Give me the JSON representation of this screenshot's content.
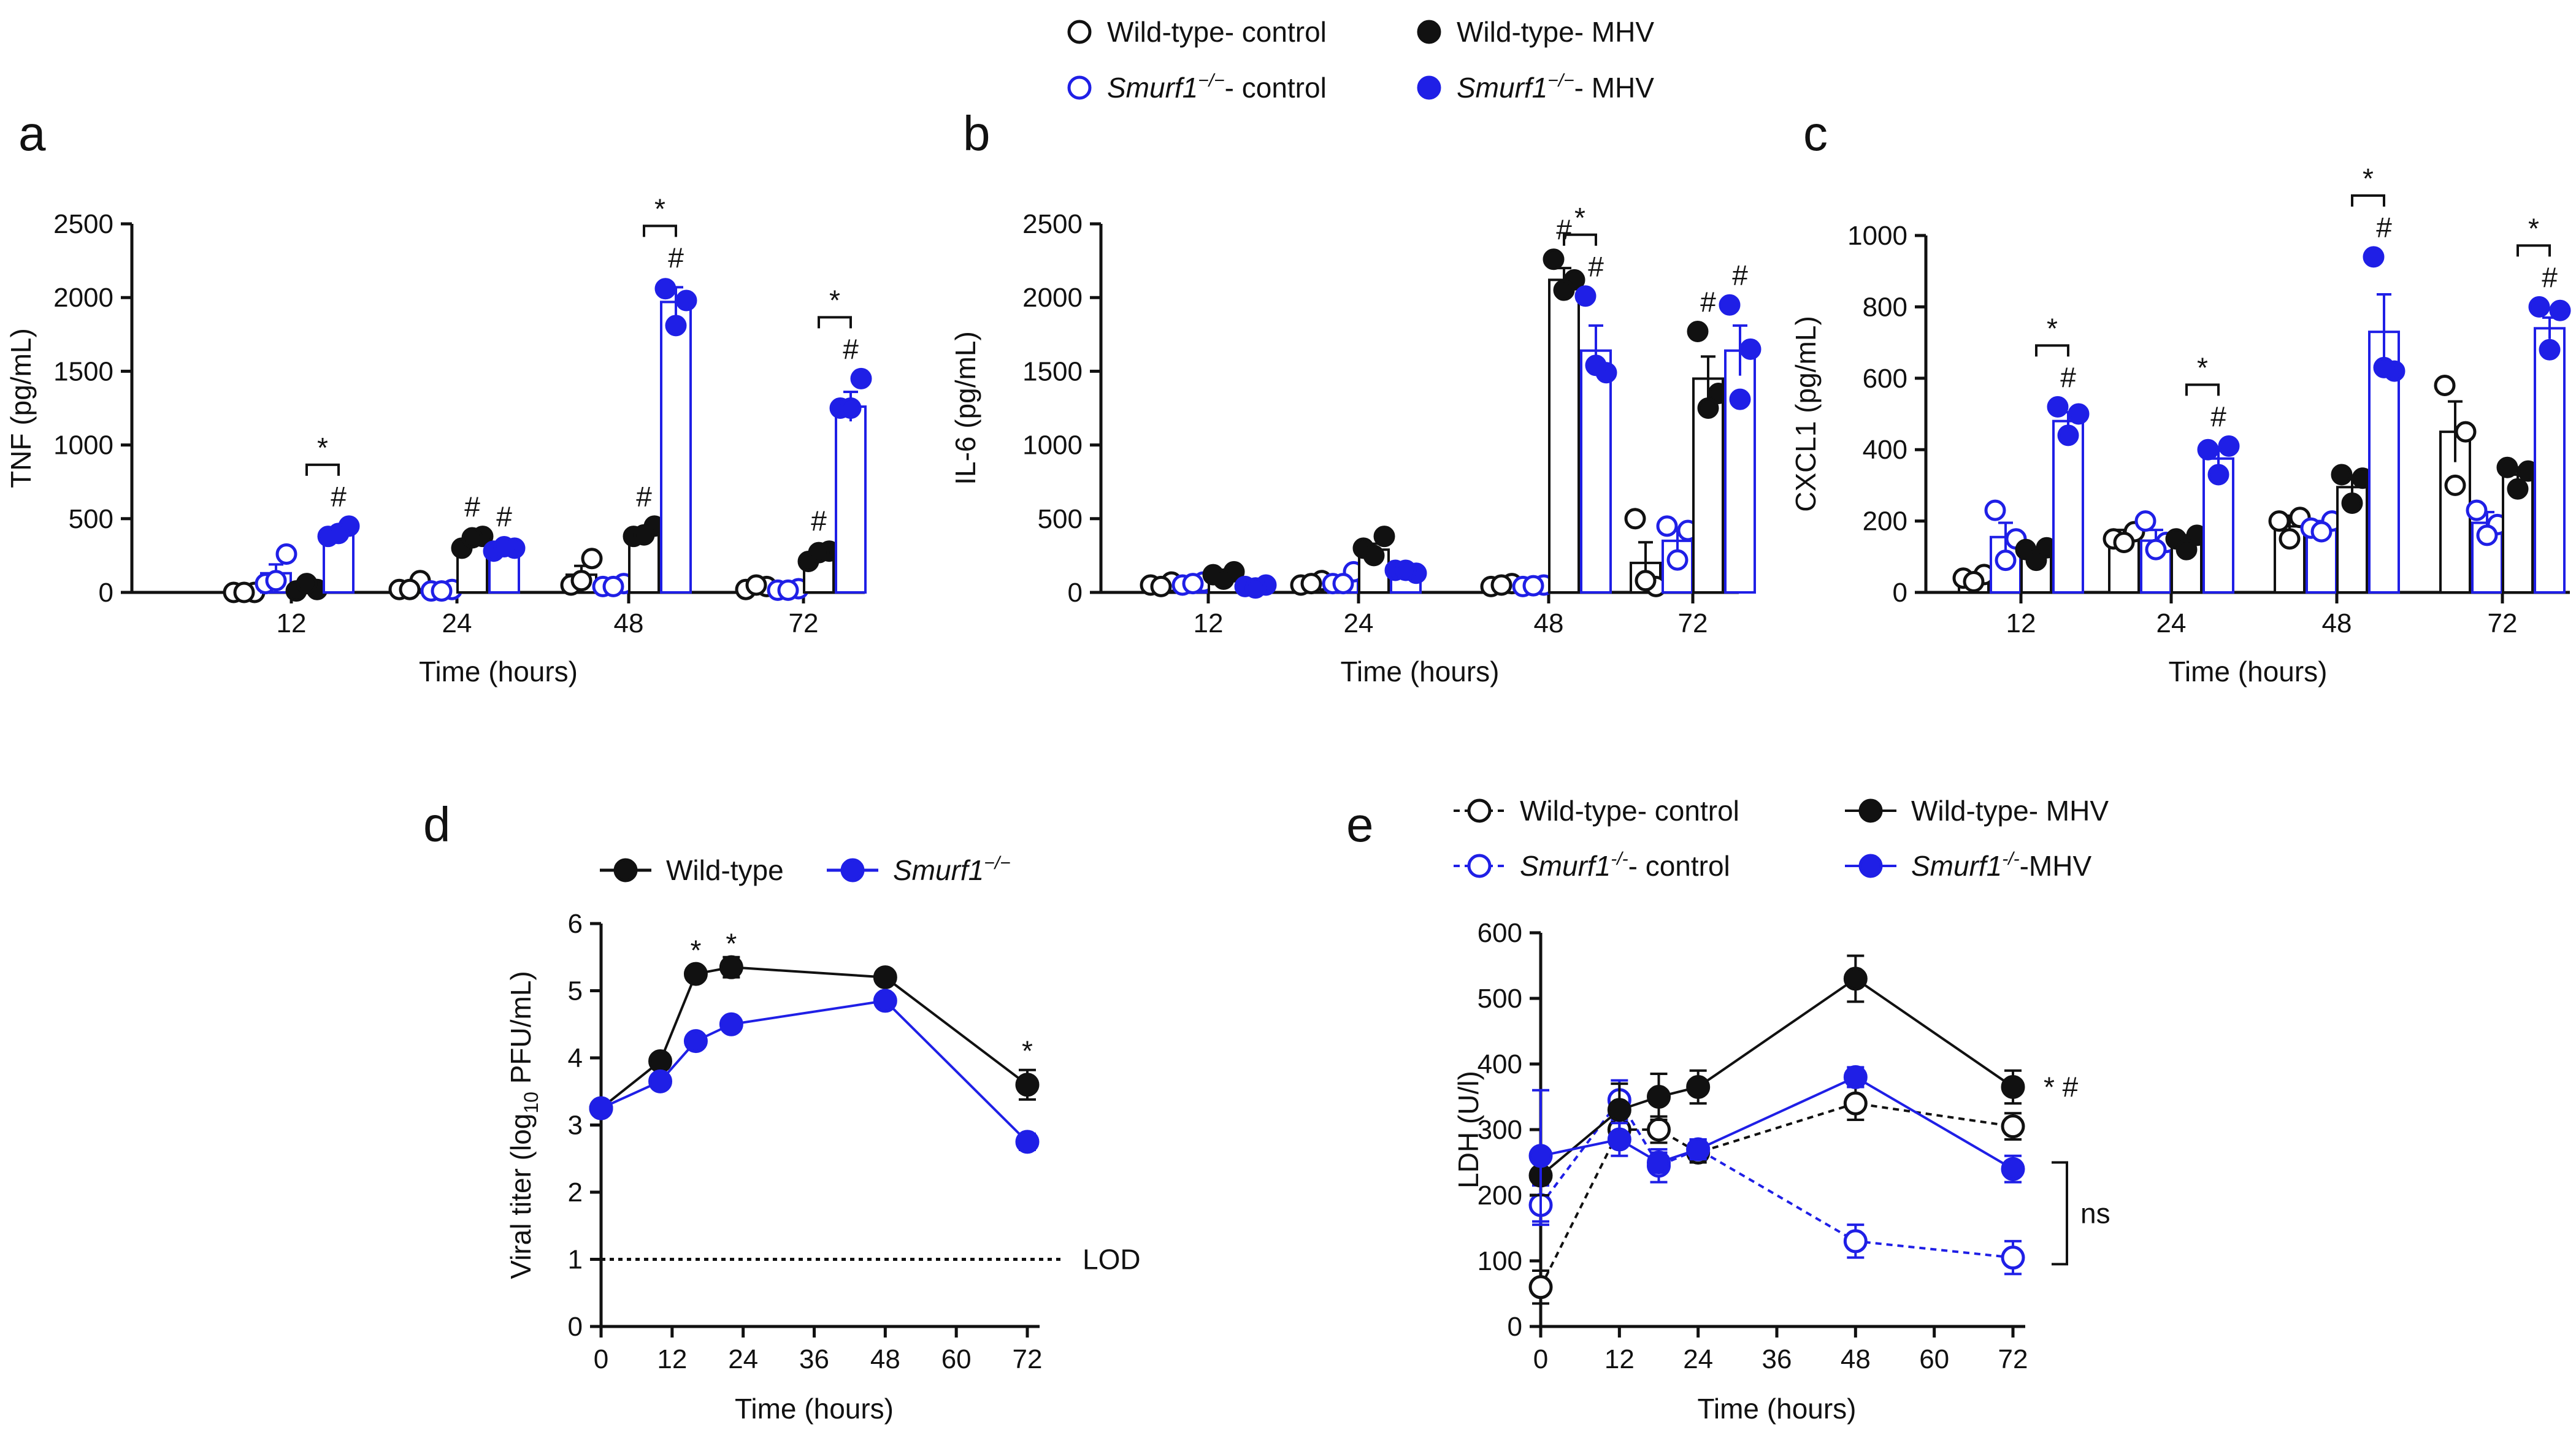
{
  "legend_top": {
    "items": [
      {
        "marker": "open-black",
        "name": "Wild-type- control"
      },
      {
        "marker": "filled-black",
        "name": "Wild-type- MHV"
      },
      {
        "marker": "open-blue",
        "name_italic": "Smurf1",
        "sup": "−/−",
        "rest": "- control"
      },
      {
        "marker": "filled-blue",
        "name_italic": "Smurf1",
        "sup": "−/−",
        "rest": "- MHV"
      }
    ]
  },
  "legend_d": {
    "items": [
      {
        "marker": "filled-black",
        "name": "Wild-type"
      },
      {
        "marker": "filled-blue",
        "name_italic": "Smurf1",
        "sup": "−/−"
      }
    ]
  },
  "legend_e": {
    "items": [
      {
        "marker": "open-black-dashed",
        "name": "Wild-type- control"
      },
      {
        "marker": "filled-black",
        "name": "Wild-type- MHV"
      },
      {
        "marker": "open-blue-dashed",
        "name_italic": "Smurf1",
        "sup": "-/-",
        "rest": "- control"
      },
      {
        "marker": "filled-blue",
        "name_italic": "Smurf1",
        "sup": "-/-",
        "rest": "-MHV"
      }
    ]
  },
  "colors": {
    "black": "#111111",
    "blue": "#1f1fe6"
  },
  "chart_data": [
    {
      "panel": "a",
      "type": "bar",
      "ylabel": "TNF (pg/mL)",
      "xlabel": "Time (hours)",
      "categories": [
        "12",
        "24",
        "48",
        "72"
      ],
      "ylim": [
        0,
        2500
      ],
      "yticks": [
        0,
        500,
        1000,
        1500,
        2000,
        2500
      ],
      "series": [
        {
          "name": "Wild-type- control",
          "style": "open-black",
          "values": [
            0,
            50,
            120,
            40
          ],
          "err": [
            5,
            20,
            60,
            12
          ],
          "points": [
            [
              0,
              0,
              0
            ],
            [
              20,
              80,
              20
            ],
            [
              50,
              230,
              80
            ],
            [
              20,
              40,
              50
            ]
          ]
        },
        {
          "name": "Smurf1-/- control",
          "style": "open-blue",
          "values": [
            130,
            15,
            50,
            20
          ],
          "err": [
            60,
            5,
            15,
            5
          ],
          "points": [
            [
              60,
              260,
              80
            ],
            [
              10,
              20,
              10
            ],
            [
              40,
              60,
              40
            ],
            [
              15,
              25,
              15
            ]
          ]
        },
        {
          "name": "Wild-type- MHV",
          "style": "filled-black",
          "values": [
            30,
            350,
            400,
            260
          ],
          "err": [
            10,
            20,
            30,
            25
          ],
          "points": [
            [
              10,
              20,
              60
            ],
            [
              300,
              380,
              370
            ],
            [
              380,
              450,
              390
            ],
            [
              210,
              280,
              270
            ]
          ]
        },
        {
          "name": "Smurf1-/- MHV",
          "style": "filled-blue",
          "values": [
            410,
            300,
            1970,
            1260
          ],
          "err": [
            25,
            15,
            100,
            100
          ],
          "points": [
            [
              380,
              450,
              400
            ],
            [
              280,
              300,
              310
            ],
            [
              2060,
              1980,
              1810
            ],
            [
              1250,
              1450,
              1250
            ]
          ]
        }
      ],
      "hash": [
        [
          false,
          false,
          false,
          true
        ],
        [
          false,
          false,
          true,
          true
        ],
        [
          false,
          false,
          true,
          true
        ],
        [
          false,
          false,
          true,
          true
        ]
      ],
      "star_brackets": [
        {
          "category": 0,
          "from": 2,
          "to": 3,
          "label": "*"
        },
        {
          "category": 2,
          "from": 2,
          "to": 3,
          "label": "*"
        },
        {
          "category": 3,
          "from": 2,
          "to": 3,
          "label": "*"
        }
      ]
    },
    {
      "panel": "b",
      "type": "bar",
      "ylabel": "IL-6 (pg/mL)",
      "xlabel": "Time (hours)",
      "categories": [
        "12",
        "24",
        "48",
        "72"
      ],
      "ylim": [
        0,
        2500
      ],
      "yticks": [
        0,
        500,
        1000,
        1500,
        2000,
        2500
      ],
      "series": [
        {
          "name": "Wild-type- control",
          "style": "open-black",
          "values": [
            55,
            65,
            50,
            200
          ],
          "err": [
            12,
            15,
            10,
            140
          ],
          "points": [
            [
              50,
              70,
              40
            ],
            [
              50,
              80,
              60
            ],
            [
              40,
              60,
              50
            ],
            [
              500,
              40,
              80
            ]
          ]
        },
        {
          "name": "Smurf1-/- control",
          "style": "open-blue",
          "values": [
            60,
            85,
            45,
            350
          ],
          "err": [
            12,
            25,
            10,
            80
          ],
          "points": [
            [
              50,
              70,
              60
            ],
            [
              60,
              140,
              60
            ],
            [
              40,
              50,
              45
            ],
            [
              450,
              420,
              220
            ]
          ]
        },
        {
          "name": "Wild-type- MHV",
          "style": "filled-black",
          "values": [
            110,
            290,
            2120,
            1450
          ],
          "err": [
            20,
            40,
            80,
            150
          ],
          "points": [
            [
              120,
              140,
              90
            ],
            [
              300,
              380,
              250
            ],
            [
              2260,
              2120,
              2050
            ],
            [
              1770,
              1350,
              1250
            ]
          ]
        },
        {
          "name": "Smurf1-/- MHV",
          "style": "filled-blue",
          "values": [
            40,
            140,
            1640,
            1640
          ],
          "err": [
            10,
            20,
            170,
            170
          ],
          "points": [
            [
              40,
              50,
              30
            ],
            [
              150,
              130,
              150
            ],
            [
              2010,
              1490,
              1540
            ],
            [
              1950,
              1650,
              1310
            ]
          ]
        }
      ],
      "hash": [
        [
          false,
          false,
          false,
          false
        ],
        [
          false,
          false,
          false,
          false
        ],
        [
          false,
          false,
          true,
          true
        ],
        [
          false,
          false,
          true,
          true
        ]
      ],
      "star_brackets": [
        {
          "category": 2,
          "from": 2,
          "to": 3,
          "label": "*"
        }
      ]
    },
    {
      "panel": "c",
      "type": "bar",
      "ylabel": "CXCL1 (pg/mL)",
      "xlabel": "Time (hours)",
      "categories": [
        "12",
        "24",
        "48",
        "72"
      ],
      "ylim": [
        0,
        1000
      ],
      "yticks": [
        0,
        200,
        400,
        600,
        800,
        1000
      ],
      "series": [
        {
          "name": "Wild-type- control",
          "style": "open-black",
          "values": [
            40,
            155,
            185,
            450
          ],
          "err": [
            8,
            20,
            30,
            85
          ],
          "points": [
            [
              40,
              50,
              30
            ],
            [
              150,
              170,
              140
            ],
            [
              200,
              210,
              150
            ],
            [
              580,
              450,
              300
            ]
          ]
        },
        {
          "name": "Smurf1-/- control",
          "style": "open-blue",
          "values": [
            155,
            145,
            185,
            195
          ],
          "err": [
            40,
            30,
            15,
            30
          ],
          "points": [
            [
              230,
              150,
              90
            ],
            [
              200,
              140,
              120
            ],
            [
              180,
              200,
              170
            ],
            [
              230,
              190,
              160
            ]
          ]
        },
        {
          "name": "Wild-type- MHV",
          "style": "filled-black",
          "values": [
            115,
            145,
            295,
            330
          ],
          "err": [
            10,
            15,
            25,
            20
          ],
          "points": [
            [
              120,
              125,
              90
            ],
            [
              150,
              160,
              120
            ],
            [
              330,
              320,
              250
            ],
            [
              350,
              340,
              290
            ]
          ]
        },
        {
          "name": "Smurf1-/- MHV",
          "style": "filled-blue",
          "values": [
            480,
            375,
            730,
            740
          ],
          "err": [
            25,
            30,
            105,
            30
          ],
          "points": [
            [
              520,
              500,
              440
            ],
            [
              400,
              410,
              330
            ],
            [
              940,
              620,
              630
            ],
            [
              800,
              790,
              680
            ]
          ]
        }
      ],
      "hash": [
        [
          false,
          false,
          false,
          true
        ],
        [
          false,
          false,
          false,
          true
        ],
        [
          false,
          false,
          false,
          true
        ],
        [
          false,
          false,
          false,
          true
        ]
      ],
      "star_brackets": [
        {
          "category": 0,
          "from": 2,
          "to": 3,
          "label": "*"
        },
        {
          "category": 1,
          "from": 2,
          "to": 3,
          "label": "*"
        },
        {
          "category": 2,
          "from": 2,
          "to": 3,
          "label": "*"
        },
        {
          "category": 3,
          "from": 2,
          "to": 3,
          "label": "*"
        }
      ]
    },
    {
      "panel": "d",
      "type": "line",
      "ylabel_pre": "Viral titer (log",
      "ylabel_sub": "10",
      "ylabel_post": " PFU/mL)",
      "xlabel": "Time (hours)",
      "xlim": [
        0,
        72
      ],
      "xticks": [
        0,
        12,
        24,
        36,
        48,
        60,
        72
      ],
      "ylim": [
        0,
        6
      ],
      "yticks": [
        0,
        1,
        2,
        3,
        4,
        5,
        6
      ],
      "lod": {
        "y": 1,
        "label": "LOD"
      },
      "series": [
        {
          "name": "Wild-type",
          "style": "filled-black",
          "x": [
            0,
            10,
            16,
            22,
            48,
            72
          ],
          "y": [
            3.25,
            3.95,
            5.25,
            5.35,
            5.2,
            3.6
          ],
          "err": [
            0.05,
            0.05,
            0.05,
            0.15,
            0.05,
            0.22
          ]
        },
        {
          "name": "Smurf1-/-",
          "style": "filled-blue",
          "x": [
            0,
            10,
            16,
            22,
            48,
            72
          ],
          "y": [
            3.25,
            3.65,
            4.25,
            4.5,
            4.85,
            2.75
          ],
          "err": [
            0.05,
            0.05,
            0.05,
            0.05,
            0.05,
            0.12
          ]
        }
      ],
      "stars": [
        {
          "x": 16,
          "y": 5.55,
          "label": "*"
        },
        {
          "x": 22,
          "y": 5.65,
          "label": "*"
        },
        {
          "x": 72,
          "y": 4.05,
          "label": "*"
        }
      ]
    },
    {
      "panel": "e",
      "type": "line",
      "ylabel": "LDH (U/l)",
      "xlabel": "Time (hours)",
      "xlim": [
        0,
        72
      ],
      "xticks": [
        0,
        12,
        24,
        36,
        48,
        60,
        72
      ],
      "ylim": [
        0,
        600
      ],
      "yticks": [
        0,
        100,
        200,
        300,
        400,
        500,
        600
      ],
      "series": [
        {
          "name": "Wild-type- control",
          "style": "open-black-dashed",
          "x": [
            0,
            12,
            18,
            24,
            48,
            72
          ],
          "y": [
            60,
            300,
            300,
            265,
            340,
            305
          ],
          "err": [
            25,
            25,
            20,
            15,
            25,
            20
          ]
        },
        {
          "name": "Smurf1-/- control",
          "style": "open-blue-dashed",
          "x": [
            0,
            12,
            18,
            24,
            48,
            72
          ],
          "y": [
            185,
            345,
            245,
            270,
            130,
            105
          ],
          "err": [
            30,
            30,
            25,
            15,
            25,
            25
          ]
        },
        {
          "name": "Wild-type- MHV",
          "style": "filled-black",
          "x": [
            0,
            12,
            18,
            24,
            48,
            72
          ],
          "y": [
            230,
            330,
            350,
            365,
            530,
            365
          ],
          "err": [
            30,
            40,
            35,
            25,
            35,
            25
          ]
        },
        {
          "name": "Smurf1-/- MHV",
          "style": "filled-blue",
          "x": [
            0,
            12,
            18,
            24,
            48,
            72
          ],
          "y": [
            260,
            285,
            250,
            270,
            380,
            240
          ],
          "err": [
            100,
            25,
            15,
            15,
            15,
            20
          ]
        }
      ],
      "sig_label": "* #",
      "ns_label": "ns"
    }
  ]
}
